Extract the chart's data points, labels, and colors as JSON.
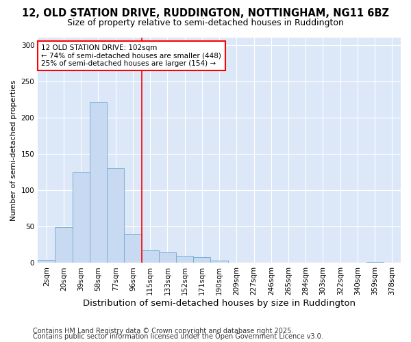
{
  "title1": "12, OLD STATION DRIVE, RUDDINGTON, NOTTINGHAM, NG11 6BZ",
  "title2": "Size of property relative to semi-detached houses in Ruddington",
  "xlabel": "Distribution of semi-detached houses by size in Ruddington",
  "ylabel": "Number of semi-detached properties",
  "categories": [
    "2sqm",
    "20sqm",
    "39sqm",
    "58sqm",
    "77sqm",
    "96sqm",
    "115sqm",
    "133sqm",
    "152sqm",
    "171sqm",
    "190sqm",
    "209sqm",
    "227sqm",
    "246sqm",
    "265sqm",
    "284sqm",
    "303sqm",
    "322sqm",
    "340sqm",
    "359sqm",
    "378sqm"
  ],
  "values": [
    4,
    49,
    125,
    222,
    130,
    40,
    17,
    15,
    10,
    8,
    3,
    0,
    0,
    0,
    0,
    0,
    0,
    0,
    0,
    1,
    0
  ],
  "bar_color": "#c8daf2",
  "bar_edge_color": "#7aadd4",
  "vline_x_index": 5,
  "vline_color": "red",
  "annotation_line1": "12 OLD STATION DRIVE: 102sqm",
  "annotation_line2": "← 74% of semi-detached houses are smaller (448)",
  "annotation_line3": "25% of semi-detached houses are larger (154) →",
  "annotation_box_color": "white",
  "annotation_box_edge_color": "red",
  "ylim": [
    0,
    310
  ],
  "yticks": [
    0,
    50,
    100,
    150,
    200,
    250,
    300
  ],
  "footer1": "Contains HM Land Registry data © Crown copyright and database right 2025.",
  "footer2": "Contains public sector information licensed under the Open Government Licence v3.0.",
  "bg_color": "#ffffff",
  "plot_bg_color": "#dce8f8",
  "grid_color": "#ffffff",
  "title1_fontsize": 10.5,
  "title2_fontsize": 9,
  "xlabel_fontsize": 9.5,
  "ylabel_fontsize": 8,
  "tick_fontsize": 7.5,
  "footer_fontsize": 7
}
